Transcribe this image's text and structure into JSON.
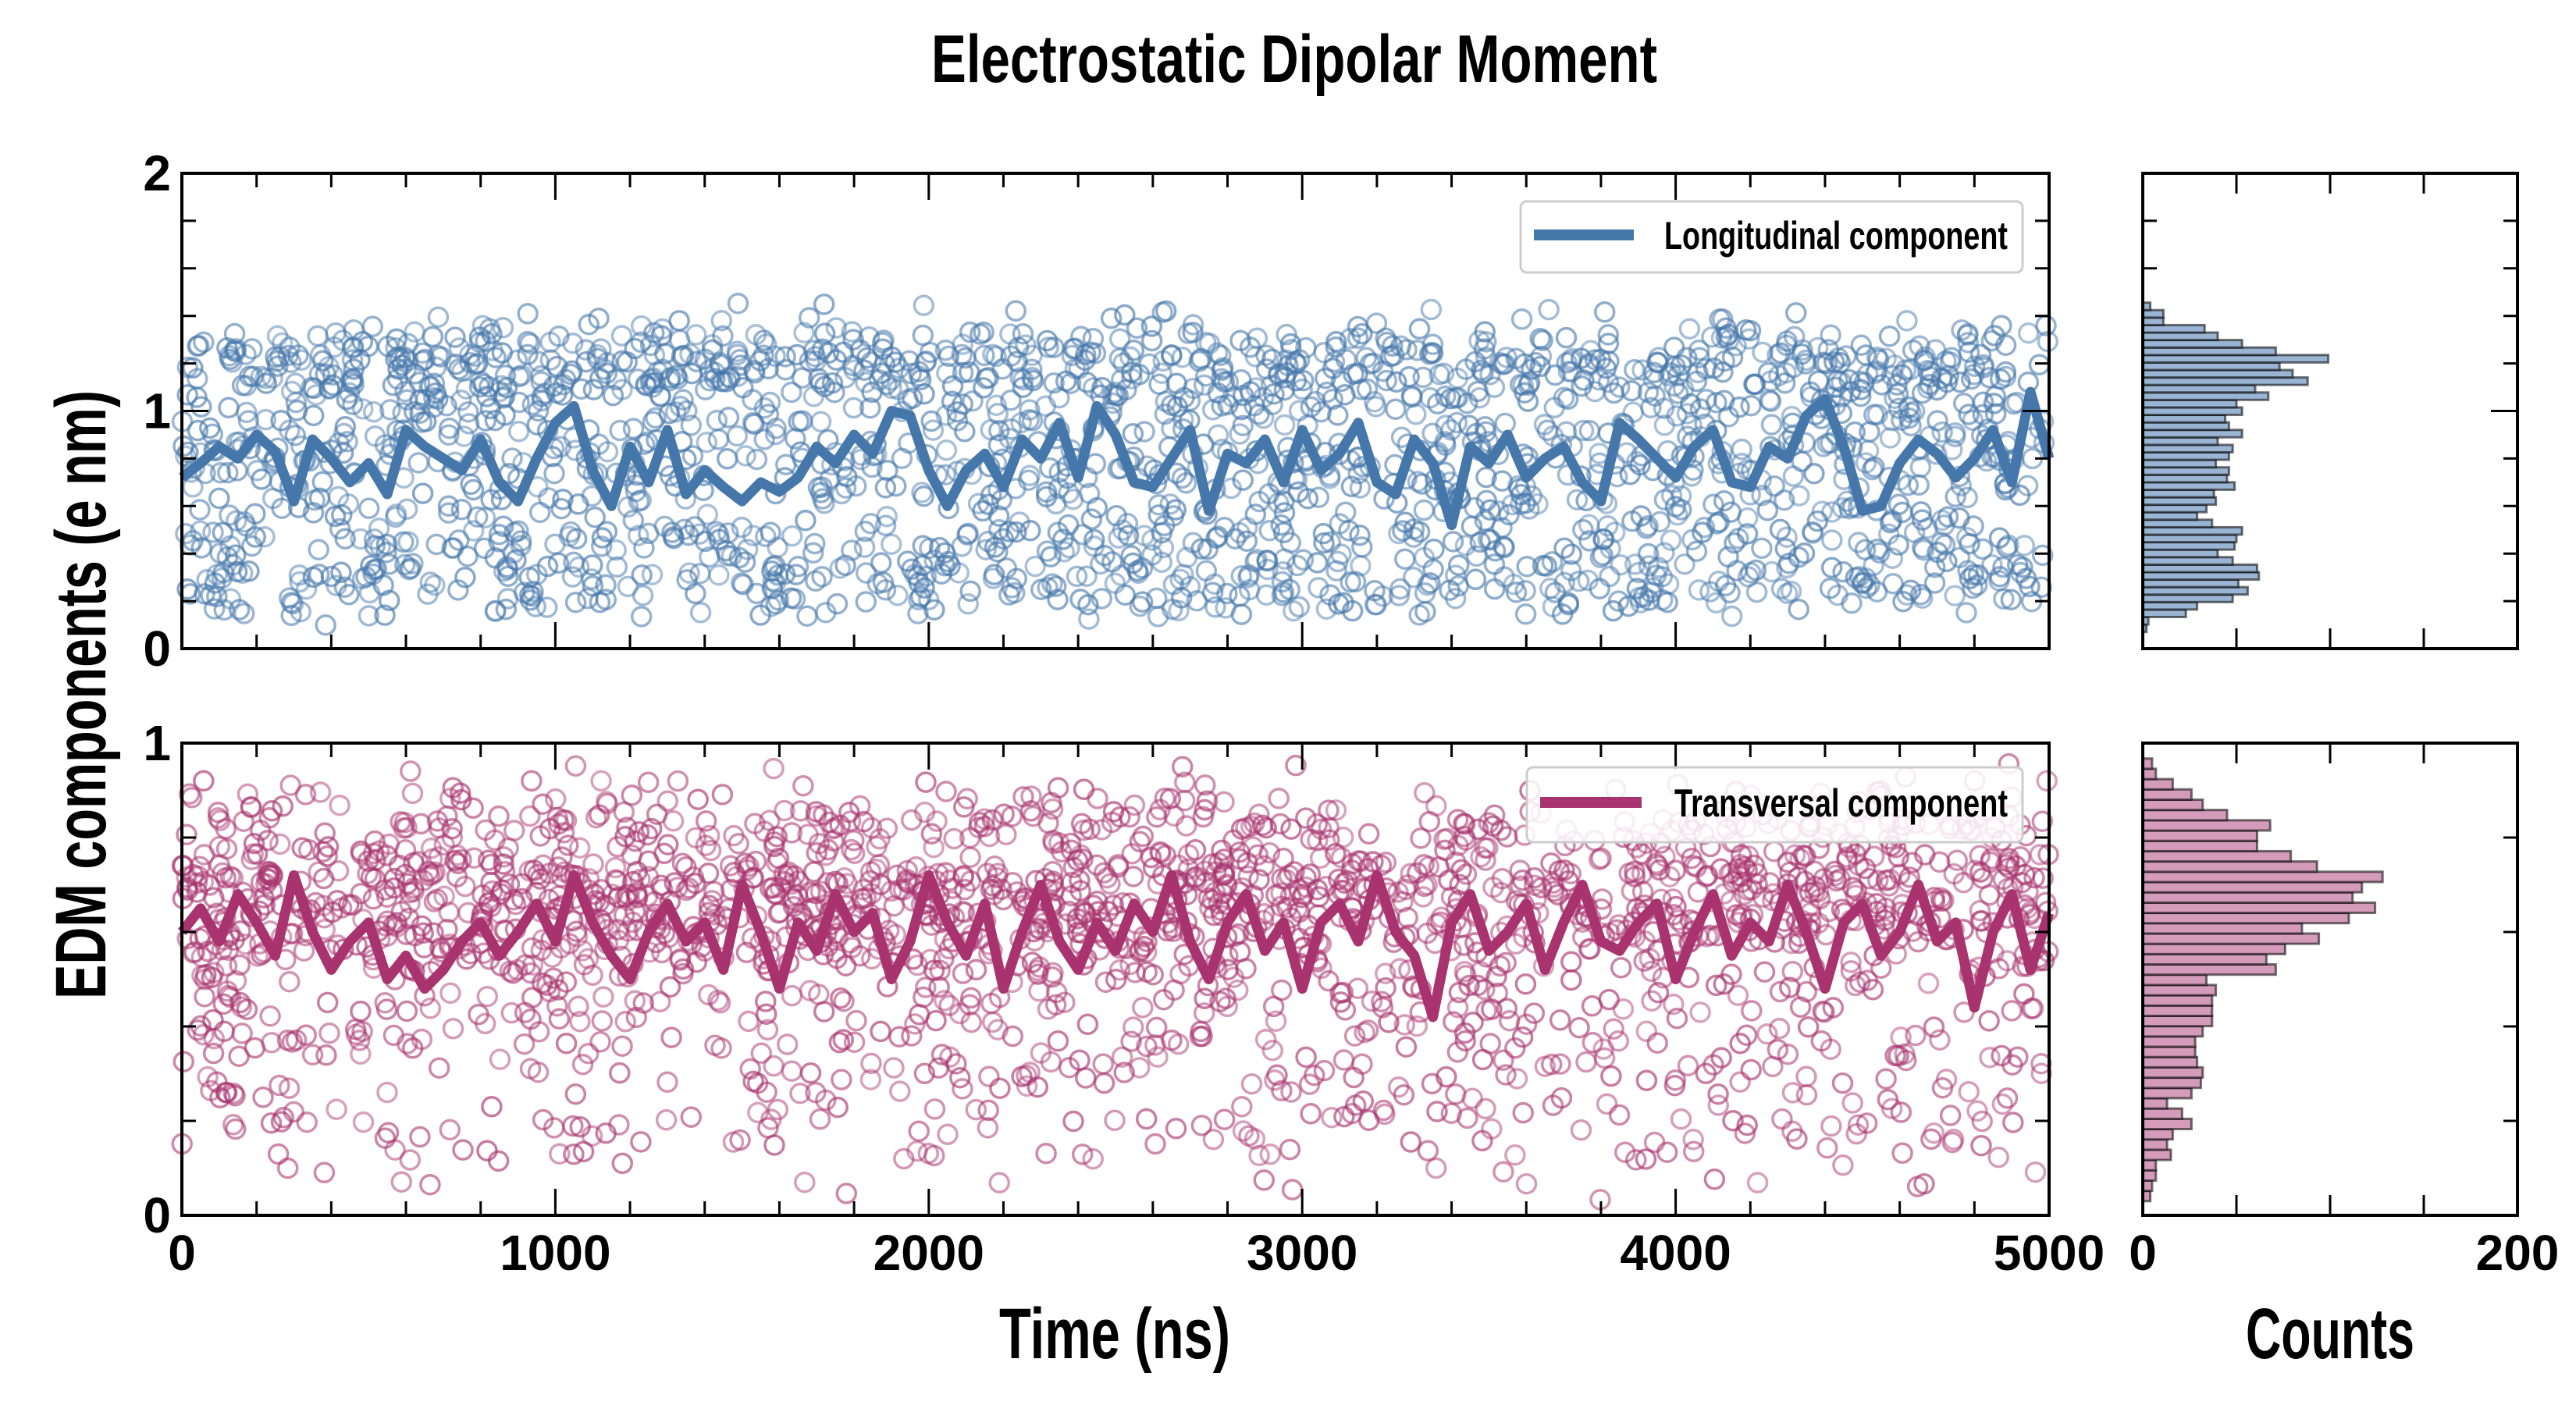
{
  "title": "Electrostatic Dipolar Moment",
  "ylabel": "EDM components (e nm)",
  "chart_data": [
    {
      "type": "line",
      "panel": "top",
      "title": "Electrostatic Dipolar Moment",
      "xlabel": "Time (ns)",
      "ylabel": "EDM components (e nm)",
      "xlim": [
        0,
        5000
      ],
      "ylim": [
        0,
        2
      ],
      "xticks": [
        "0",
        "1000",
        "2000",
        "3000",
        "4000",
        "5000"
      ],
      "yticks": [
        "0",
        "1",
        "2"
      ],
      "legend": {
        "label": "Longitudinal component",
        "placement": "top-right"
      },
      "color": "#4677aa",
      "scatter": {
        "marker": "open-circle",
        "n_points": 2000,
        "time_range": [
          0,
          5000
        ]
      },
      "line": {
        "name": "Longitudinal component",
        "x_step": 50,
        "values": [
          0.72,
          0.78,
          0.85,
          0.8,
          0.9,
          0.83,
          0.62,
          0.88,
          0.8,
          0.7,
          0.78,
          0.65,
          0.92,
          0.85,
          0.8,
          0.75,
          0.88,
          0.7,
          0.62,
          0.8,
          0.95,
          1.02,
          0.75,
          0.6,
          0.85,
          0.7,
          0.92,
          0.65,
          0.75,
          0.68,
          0.62,
          0.7,
          0.66,
          0.72,
          0.85,
          0.78,
          0.9,
          0.82,
          1.0,
          0.98,
          0.75,
          0.6,
          0.75,
          0.82,
          0.68,
          0.88,
          0.8,
          0.95,
          0.72,
          1.02,
          0.9,
          0.7,
          0.68,
          0.8,
          0.92,
          0.58,
          0.82,
          0.78,
          0.88,
          0.7,
          0.92,
          0.75,
          0.82,
          0.95,
          0.7,
          0.65,
          0.88,
          0.78,
          0.52,
          0.85,
          0.78,
          0.9,
          0.72,
          0.8,
          0.85,
          0.7,
          0.62,
          0.95,
          0.88,
          0.8,
          0.72,
          0.85,
          0.92,
          0.7,
          0.68,
          0.85,
          0.8,
          0.98,
          1.05,
          0.85,
          0.58,
          0.6,
          0.78,
          0.88,
          0.82,
          0.72,
          0.8,
          0.92,
          0.7,
          1.08,
          0.8
        ]
      },
      "histogram": {
        "xlabel": "Counts",
        "xlim": [
          0,
          200
        ],
        "xticks": [
          "0",
          "200"
        ],
        "bin_start": 0.07,
        "bin_width": 0.0315,
        "counts": [
          2,
          3,
          23,
          29,
          48,
          56,
          51,
          62,
          61,
          48,
          40,
          49,
          50,
          53,
          37,
          29,
          34,
          39,
          38,
          49,
          45,
          46,
          39,
          46,
          48,
          40,
          53,
          46,
          44,
          53,
          50,
          67,
          60,
          88,
          80,
          73,
          99,
          71,
          53,
          40,
          33,
          11,
          11,
          4
        ],
        "fill": "#9ab4d3"
      }
    },
    {
      "type": "line",
      "panel": "bottom",
      "xlabel": "Time (ns)",
      "ylabel": "EDM components (e nm)",
      "xlim": [
        0,
        5000
      ],
      "ylim": [
        0,
        1
      ],
      "xticks": [
        "0",
        "1000",
        "2000",
        "3000",
        "4000",
        "5000"
      ],
      "yticks": [
        "0",
        "1"
      ],
      "legend": {
        "label": "Transversal component",
        "placement": "top-right"
      },
      "color": "#a8336f",
      "scatter": {
        "marker": "open-circle",
        "n_points": 2000,
        "time_range": [
          0,
          5000
        ]
      },
      "line": {
        "name": "Transversal component",
        "x_step": 50,
        "values": [
          0.6,
          0.65,
          0.58,
          0.68,
          0.62,
          0.55,
          0.72,
          0.6,
          0.52,
          0.58,
          0.62,
          0.5,
          0.55,
          0.48,
          0.52,
          0.58,
          0.62,
          0.55,
          0.6,
          0.66,
          0.58,
          0.72,
          0.62,
          0.55,
          0.5,
          0.6,
          0.66,
          0.58,
          0.62,
          0.52,
          0.7,
          0.6,
          0.48,
          0.62,
          0.56,
          0.68,
          0.6,
          0.64,
          0.5,
          0.58,
          0.72,
          0.62,
          0.55,
          0.66,
          0.48,
          0.6,
          0.7,
          0.58,
          0.52,
          0.62,
          0.56,
          0.66,
          0.6,
          0.72,
          0.58,
          0.5,
          0.62,
          0.68,
          0.56,
          0.62,
          0.48,
          0.62,
          0.66,
          0.58,
          0.72,
          0.6,
          0.55,
          0.42,
          0.62,
          0.68,
          0.56,
          0.6,
          0.66,
          0.52,
          0.62,
          0.7,
          0.58,
          0.56,
          0.62,
          0.66,
          0.5,
          0.6,
          0.68,
          0.55,
          0.62,
          0.58,
          0.7,
          0.6,
          0.48,
          0.62,
          0.66,
          0.55,
          0.6,
          0.7,
          0.58,
          0.62,
          0.44,
          0.6,
          0.68,
          0.52,
          0.64
        ]
      },
      "histogram": {
        "xlabel": "Counts",
        "xlim": [
          0,
          200
        ],
        "xticks": [
          "0",
          "200"
        ],
        "bin_start": 0.03,
        "bin_width": 0.0218,
        "counts": [
          4,
          5,
          7,
          7,
          15,
          13,
          16,
          26,
          21,
          13,
          26,
          31,
          32,
          29,
          28,
          28,
          32,
          37,
          37,
          37,
          39,
          34,
          71,
          66,
          76,
          94,
          85,
          110,
          124,
          112,
          117,
          128,
          93,
          79,
          61,
          61,
          68,
          45,
          32,
          26,
          16,
          7,
          5
        ],
        "fill": "#d49bbb"
      }
    }
  ]
}
